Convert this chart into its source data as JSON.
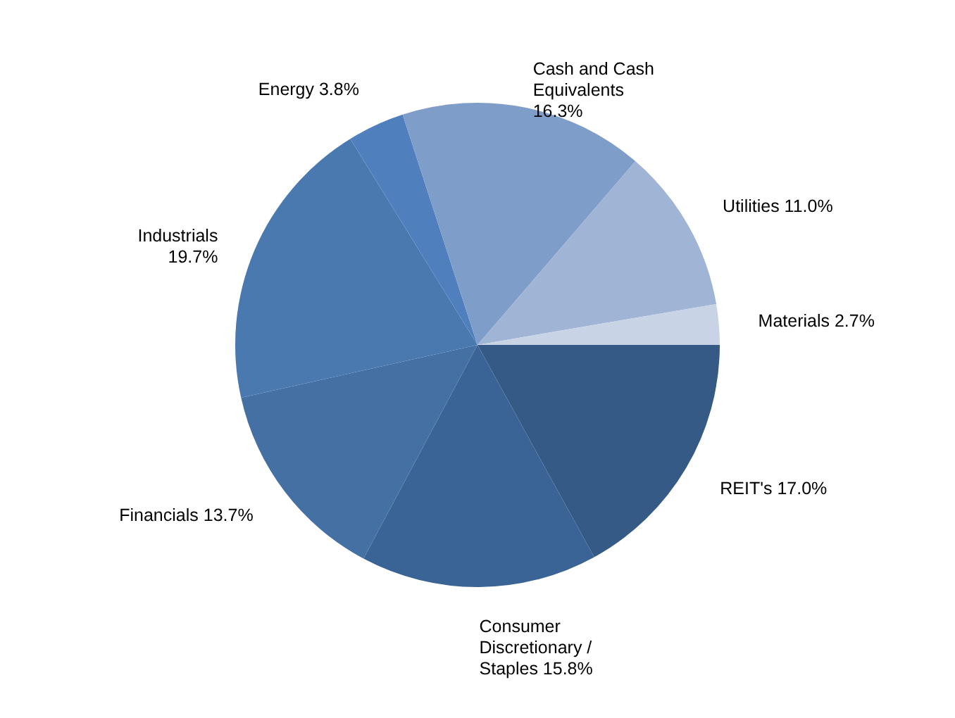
{
  "chart_data": {
    "type": "pie",
    "categories": [
      "REIT's",
      "Consumer Discretionary / Staples",
      "Financials",
      "Industrials",
      "Energy",
      "Cash and Cash Equivalents",
      "Utilities",
      "Materials"
    ],
    "values": [
      17.0,
      15.8,
      13.7,
      19.7,
      3.8,
      16.3,
      11.0,
      2.7
    ],
    "colors": [
      "#345a85",
      "#3a6496",
      "#4470a3",
      "#4a79b0",
      "#4f80bd",
      "#7f9dc9",
      "#a0b4d6",
      "#c9d3e6"
    ],
    "value_labels": [
      "17.0%",
      "15.8%",
      "13.7%",
      "19.7%",
      "3.8%",
      "16.3%",
      "11.0%",
      "2.7%"
    ]
  }
}
